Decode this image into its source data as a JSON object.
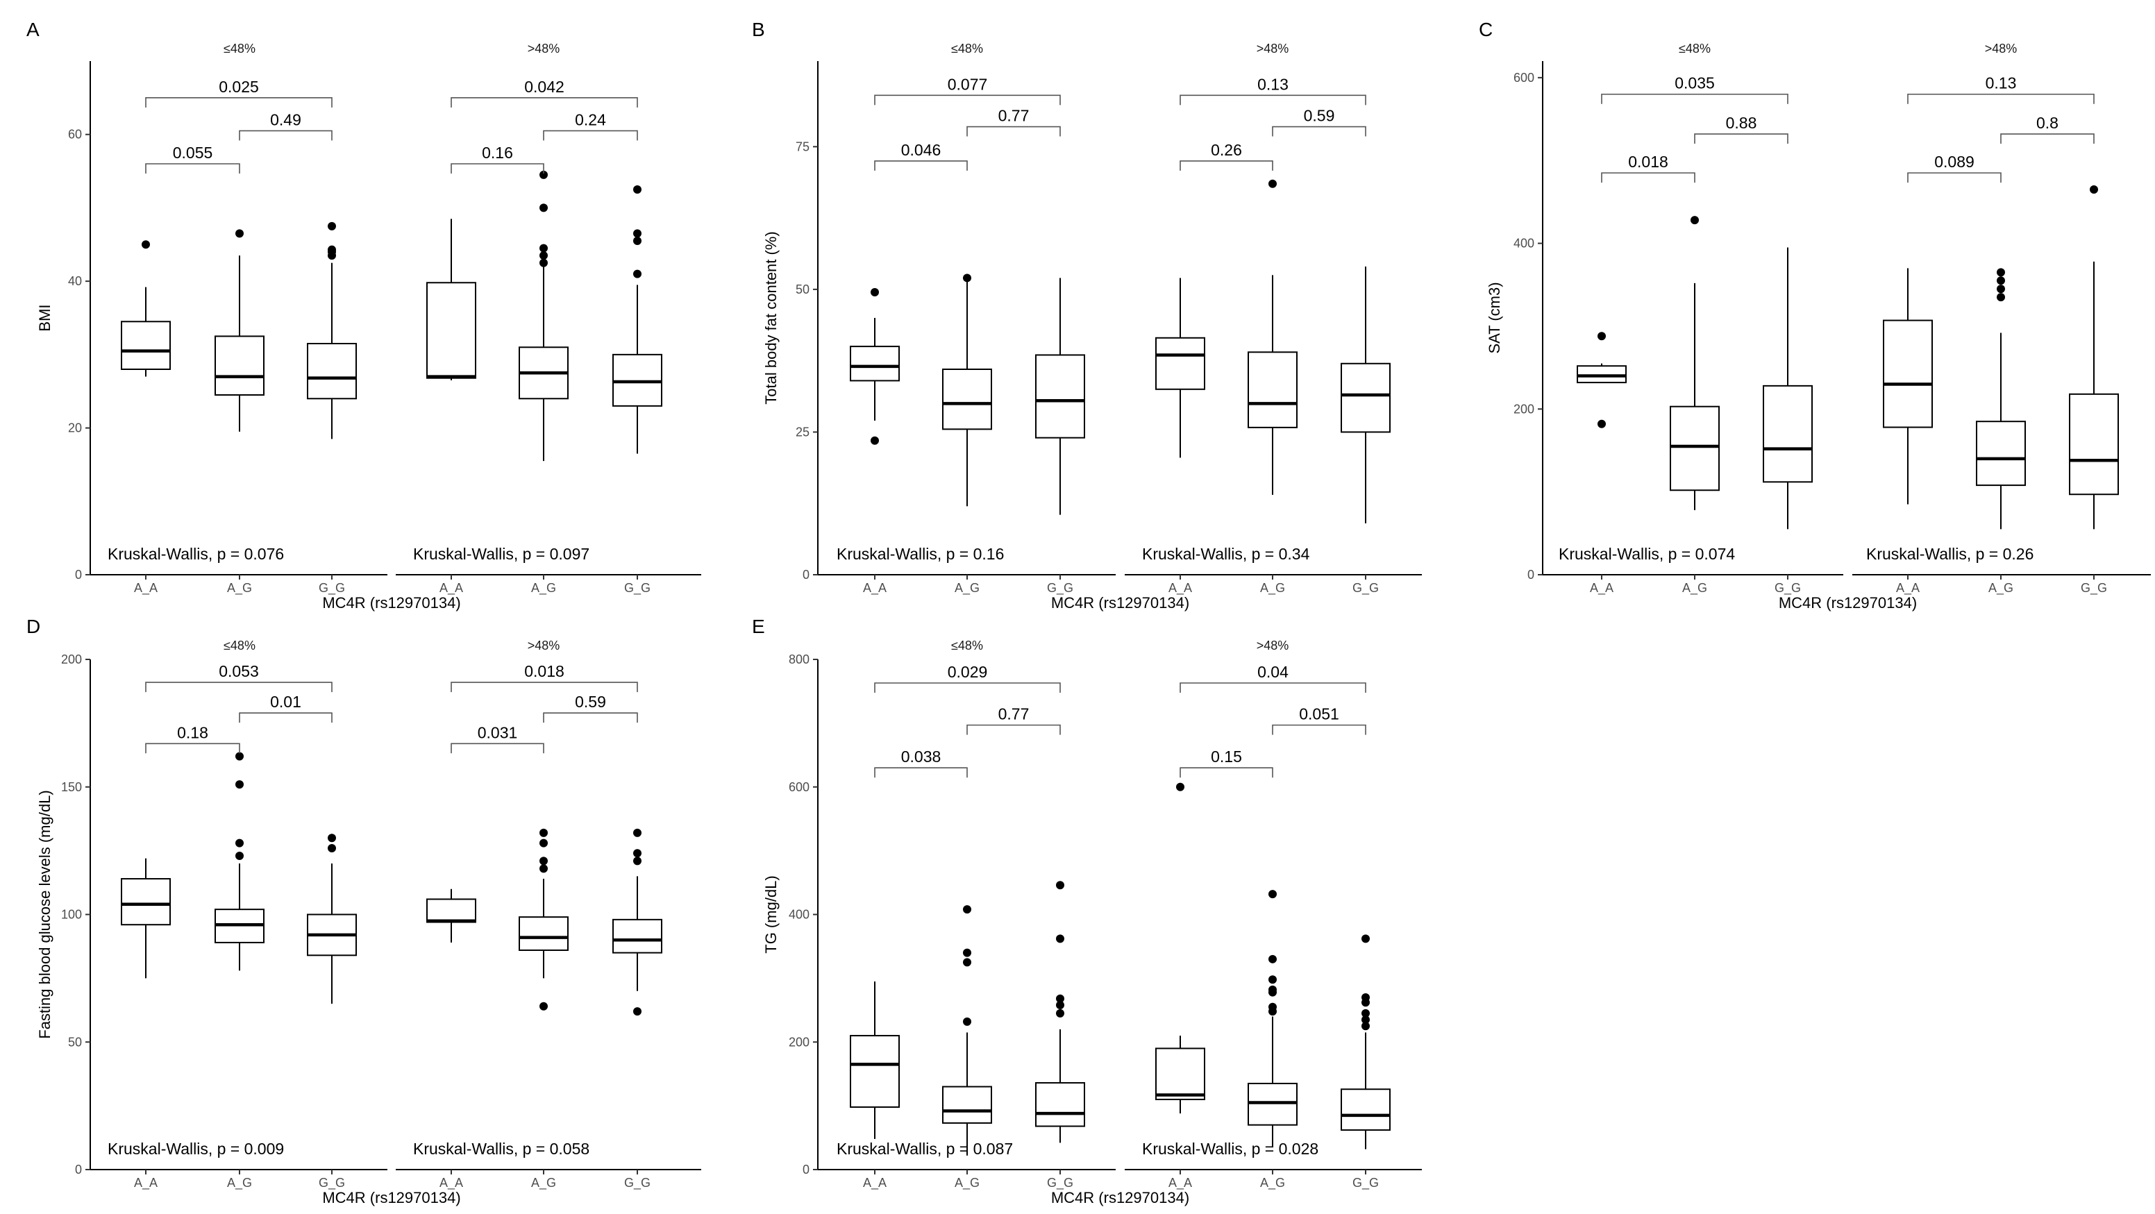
{
  "chart_data": [
    {
      "type": "boxplot",
      "panel_label": "A",
      "ylabel": "BMI",
      "xlabel": "MC4R (rs12970134)",
      "ylim": [
        0,
        70
      ],
      "yticks": [
        0,
        20,
        40,
        60
      ],
      "categories": [
        "A_A",
        "A_G",
        "G_G"
      ],
      "groups": [
        {
          "title": "≤48%",
          "boxes": [
            {
              "category": "A_A",
              "min": 27,
              "q1": 28,
              "median": 30.5,
              "q3": 34.5,
              "max": 39.2,
              "outliers": [
                45
              ]
            },
            {
              "category": "A_G",
              "min": 19.5,
              "q1": 24.5,
              "median": 27,
              "q3": 32.5,
              "max": 43.5,
              "outliers": [
                46.5
              ]
            },
            {
              "category": "G_G",
              "min": 18.5,
              "q1": 24,
              "median": 26.8,
              "q3": 31.5,
              "max": 42.5,
              "outliers": [
                43.5,
                44,
                44.3,
                47.5
              ]
            }
          ],
          "comparisons": [
            {
              "from": "A_A",
              "to": "G_G",
              "p": "0.025",
              "y": 65
            },
            {
              "from": "A_G",
              "to": "G_G",
              "p": "0.49",
              "y": 60.5
            },
            {
              "from": "A_A",
              "to": "A_G",
              "p": "0.055",
              "y": 56
            }
          ],
          "test_label": "Kruskal-Wallis, p = 0.076"
        },
        {
          "title": ">48%",
          "boxes": [
            {
              "category": "A_A",
              "min": 26.5,
              "q1": 26.8,
              "median": 27,
              "q3": 39.8,
              "max": 48.5,
              "outliers": []
            },
            {
              "category": "A_G",
              "min": 15.5,
              "q1": 24,
              "median": 27.5,
              "q3": 31,
              "max": 42,
              "outliers": [
                42.5,
                43.5,
                44.5,
                50,
                54.5
              ]
            },
            {
              "category": "G_G",
              "min": 16.5,
              "q1": 23,
              "median": 26.3,
              "q3": 30,
              "max": 39.5,
              "outliers": [
                41,
                45.5,
                46.5,
                52.5
              ]
            }
          ],
          "comparisons": [
            {
              "from": "A_A",
              "to": "G_G",
              "p": "0.042",
              "y": 65
            },
            {
              "from": "A_G",
              "to": "G_G",
              "p": "0.24",
              "y": 60.5
            },
            {
              "from": "A_A",
              "to": "A_G",
              "p": "0.16",
              "y": 56
            }
          ],
          "test_label": "Kruskal-Wallis, p = 0.097"
        }
      ]
    },
    {
      "type": "boxplot",
      "panel_label": "B",
      "ylabel": "Total body fat content (%)",
      "xlabel": "MC4R (rs12970134)",
      "ylim": [
        0,
        90
      ],
      "yticks": [
        0,
        25,
        50,
        75
      ],
      "categories": [
        "A_A",
        "A_G",
        "G_G"
      ],
      "groups": [
        {
          "title": "≤48%",
          "boxes": [
            {
              "category": "A_A",
              "min": 27,
              "q1": 34,
              "median": 36.5,
              "q3": 40,
              "max": 45,
              "outliers": [
                23.5,
                49.5
              ]
            },
            {
              "category": "A_G",
              "min": 12,
              "q1": 25.5,
              "median": 30,
              "q3": 36,
              "max": 51.5,
              "outliers": [
                52
              ]
            },
            {
              "category": "G_G",
              "min": 10.5,
              "q1": 24,
              "median": 30.5,
              "q3": 38.5,
              "max": 52,
              "outliers": []
            }
          ],
          "comparisons": [
            {
              "from": "A_A",
              "to": "G_G",
              "p": "0.077",
              "y": 84
            },
            {
              "from": "A_G",
              "to": "G_G",
              "p": "0.77",
              "y": 78.5
            },
            {
              "from": "A_A",
              "to": "A_G",
              "p": "0.046",
              "y": 72.5
            }
          ],
          "test_label": "Kruskal-Wallis, p = 0.16"
        },
        {
          "title": ">48%",
          "boxes": [
            {
              "category": "A_A",
              "min": 20.5,
              "q1": 32.5,
              "median": 38.5,
              "q3": 41.5,
              "max": 52,
              "outliers": []
            },
            {
              "category": "A_G",
              "min": 14,
              "q1": 25.8,
              "median": 30,
              "q3": 39,
              "max": 52.5,
              "outliers": [
                68.5
              ]
            },
            {
              "category": "G_G",
              "min": 9,
              "q1": 25,
              "median": 31.5,
              "q3": 37,
              "max": 54,
              "outliers": []
            }
          ],
          "comparisons": [
            {
              "from": "A_A",
              "to": "G_G",
              "p": "0.13",
              "y": 84
            },
            {
              "from": "A_G",
              "to": "G_G",
              "p": "0.59",
              "y": 78.5
            },
            {
              "from": "A_A",
              "to": "A_G",
              "p": "0.26",
              "y": 72.5
            }
          ],
          "test_label": "Kruskal-Wallis, p = 0.34"
        }
      ]
    },
    {
      "type": "boxplot",
      "panel_label": "C",
      "ylabel": "SAT (cm3)",
      "xlabel": "MC4R (rs12970134)",
      "ylim": [
        0,
        620
      ],
      "yticks": [
        0,
        200,
        400,
        600
      ],
      "categories": [
        "A_A",
        "A_G",
        "G_G"
      ],
      "groups": [
        {
          "title": "≤48%",
          "boxes": [
            {
              "category": "A_A",
              "min": 232,
              "q1": 232,
              "median": 240,
              "q3": 252,
              "max": 255,
              "outliers": [
                182,
                288
              ]
            },
            {
              "category": "A_G",
              "min": 78,
              "q1": 102,
              "median": 155,
              "q3": 203,
              "max": 352,
              "outliers": [
                428
              ]
            },
            {
              "category": "G_G",
              "min": 55,
              "q1": 112,
              "median": 152,
              "q3": 228,
              "max": 395,
              "outliers": []
            }
          ],
          "comparisons": [
            {
              "from": "A_A",
              "to": "G_G",
              "p": "0.035",
              "y": 580
            },
            {
              "from": "A_G",
              "to": "G_G",
              "p": "0.88",
              "y": 532
            },
            {
              "from": "A_A",
              "to": "A_G",
              "p": "0.018",
              "y": 485
            }
          ],
          "test_label": "Kruskal-Wallis, p = 0.074"
        },
        {
          "title": ">48%",
          "boxes": [
            {
              "category": "A_A",
              "min": 85,
              "q1": 178,
              "median": 230,
              "q3": 307,
              "max": 370,
              "outliers": []
            },
            {
              "category": "A_G",
              "min": 55,
              "q1": 108,
              "median": 140,
              "q3": 185,
              "max": 292,
              "outliers": [
                335,
                345,
                355,
                365
              ]
            },
            {
              "category": "G_G",
              "min": 55,
              "q1": 97,
              "median": 138,
              "q3": 218,
              "max": 378,
              "outliers": [
                465
              ]
            }
          ],
          "comparisons": [
            {
              "from": "A_A",
              "to": "G_G",
              "p": "0.13",
              "y": 580
            },
            {
              "from": "A_G",
              "to": "G_G",
              "p": "0.8",
              "y": 532
            },
            {
              "from": "A_A",
              "to": "A_G",
              "p": "0.089",
              "y": 485
            }
          ],
          "test_label": "Kruskal-Wallis, p = 0.26"
        }
      ]
    },
    {
      "type": "boxplot",
      "panel_label": "D",
      "ylabel": "Fasting blood glucose levels (mg/dL)",
      "xlabel": "MC4R (rs12970134)",
      "ylim": [
        0,
        200
      ],
      "yticks": [
        0,
        50,
        100,
        150,
        200
      ],
      "categories": [
        "A_A",
        "A_G",
        "G_G"
      ],
      "groups": [
        {
          "title": "≤48%",
          "boxes": [
            {
              "category": "A_A",
              "min": 75,
              "q1": 96,
              "median": 104,
              "q3": 114,
              "max": 122,
              "outliers": []
            },
            {
              "category": "A_G",
              "min": 78,
              "q1": 89,
              "median": 96,
              "q3": 102,
              "max": 120,
              "outliers": [
                123,
                128,
                151,
                162
              ]
            },
            {
              "category": "G_G",
              "min": 65,
              "q1": 84,
              "median": 92,
              "q3": 100,
              "max": 120,
              "outliers": [
                126,
                130
              ]
            }
          ],
          "comparisons": [
            {
              "from": "A_A",
              "to": "G_G",
              "p": "0.053",
              "y": 191
            },
            {
              "from": "A_G",
              "to": "G_G",
              "p": "0.01",
              "y": 179
            },
            {
              "from": "A_A",
              "to": "A_G",
              "p": "0.18",
              "y": 167
            }
          ],
          "test_label": "Kruskal-Wallis, p = 0.009"
        },
        {
          "title": ">48%",
          "boxes": [
            {
              "category": "A_A",
              "min": 89,
              "q1": 97,
              "median": 97.5,
              "q3": 106,
              "max": 110,
              "outliers": []
            },
            {
              "category": "A_G",
              "min": 75,
              "q1": 86,
              "median": 91,
              "q3": 99,
              "max": 114,
              "outliers": [
                64,
                118,
                121,
                128,
                132
              ]
            },
            {
              "category": "G_G",
              "min": 70,
              "q1": 85,
              "median": 90,
              "q3": 98,
              "max": 115,
              "outliers": [
                62,
                121,
                124,
                132
              ]
            }
          ],
          "comparisons": [
            {
              "from": "A_A",
              "to": "G_G",
              "p": "0.018",
              "y": 191
            },
            {
              "from": "A_G",
              "to": "G_G",
              "p": "0.59",
              "y": 179
            },
            {
              "from": "A_A",
              "to": "A_G",
              "p": "0.031",
              "y": 167
            }
          ],
          "test_label": "Kruskal-Wallis, p = 0.058"
        }
      ]
    },
    {
      "type": "boxplot",
      "panel_label": "E",
      "ylabel": "TG (mg/dL)",
      "xlabel": "MC4R (rs12970134)",
      "ylim": [
        0,
        800
      ],
      "yticks": [
        0,
        200,
        400,
        600,
        800
      ],
      "categories": [
        "A_A",
        "A_G",
        "G_G"
      ],
      "groups": [
        {
          "title": "≤48%",
          "boxes": [
            {
              "category": "A_A",
              "min": 48,
              "q1": 98,
              "median": 165,
              "q3": 210,
              "max": 295,
              "outliers": []
            },
            {
              "category": "A_G",
              "min": 22,
              "q1": 73,
              "median": 92,
              "q3": 130,
              "max": 215,
              "outliers": [
                232,
                325,
                340,
                408
              ]
            },
            {
              "category": "G_G",
              "min": 42,
              "q1": 68,
              "median": 88,
              "q3": 136,
              "max": 220,
              "outliers": [
                245,
                258,
                268,
                362,
                446
              ]
            }
          ],
          "comparisons": [
            {
              "from": "A_A",
              "to": "G_G",
              "p": "0.029",
              "y": 763
            },
            {
              "from": "A_G",
              "to": "G_G",
              "p": "0.77",
              "y": 697
            },
            {
              "from": "A_A",
              "to": "A_G",
              "p": "0.038",
              "y": 630
            }
          ],
          "test_label": "Kruskal-Wallis, p = 0.087"
        },
        {
          "title": ">48%",
          "boxes": [
            {
              "category": "A_A",
              "min": 88,
              "q1": 110,
              "median": 117,
              "q3": 190,
              "max": 210,
              "outliers": [
                600
              ]
            },
            {
              "category": "A_G",
              "min": 35,
              "q1": 70,
              "median": 105,
              "q3": 135,
              "max": 240,
              "outliers": [
                248,
                255,
                278,
                282,
                298,
                330,
                432
              ]
            },
            {
              "category": "G_G",
              "min": 32,
              "q1": 62,
              "median": 85,
              "q3": 126,
              "max": 215,
              "outliers": [
                225,
                235,
                245,
                262,
                270,
                362
              ]
            }
          ],
          "comparisons": [
            {
              "from": "A_A",
              "to": "G_G",
              "p": "0.04",
              "y": 763
            },
            {
              "from": "A_G",
              "to": "G_G",
              "p": "0.051",
              "y": 697
            },
            {
              "from": "A_A",
              "to": "A_G",
              "p": "0.15",
              "y": 630
            }
          ],
          "test_label": "Kruskal-Wallis, p = 0.028"
        }
      ]
    }
  ]
}
